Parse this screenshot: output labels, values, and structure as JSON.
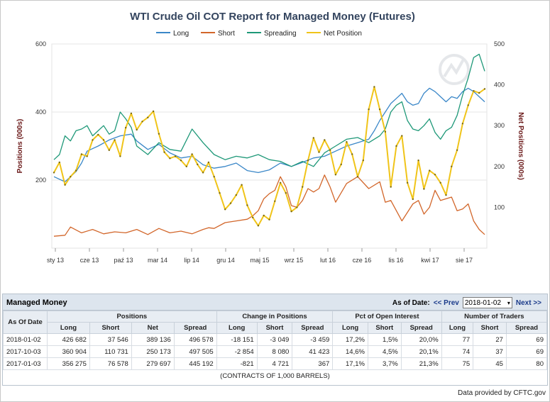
{
  "chart_data": {
    "type": "line",
    "title": "WTI Crude Oil COT Report for Managed Money (Futures)",
    "ylabel_left": "Positions (000s)",
    "ylabel_right": "Net Positions (000s)",
    "left_axis": {
      "ticks": [
        "200",
        "400",
        "600"
      ],
      "ylim": [
        0,
        600
      ]
    },
    "right_axis": {
      "ticks": [
        "100",
        "200",
        "300",
        "400",
        "500"
      ],
      "ylim": [
        0,
        500
      ]
    },
    "x_ticks": [
      "sty 13",
      "cze 13",
      "paź 13",
      "mar 14",
      "lip 14",
      "gru 14",
      "maj 15",
      "wrz 15",
      "lut 16",
      "cze 16",
      "lis 16",
      "kwi 17",
      "sie 17"
    ],
    "x_range": [
      "2013-01",
      "2018-01"
    ],
    "legend_position": "top-center",
    "series": [
      {
        "name": "Long",
        "axis": "left",
        "color": "#3a87c8",
        "points": [
          [
            0,
            210
          ],
          [
            2,
            195
          ],
          [
            4,
            225
          ],
          [
            5,
            250
          ],
          [
            6,
            285
          ],
          [
            8,
            300
          ],
          [
            10,
            318
          ],
          [
            12,
            330
          ],
          [
            14,
            335
          ],
          [
            15,
            315
          ],
          [
            17,
            290
          ],
          [
            19,
            305
          ],
          [
            21,
            280
          ],
          [
            23,
            265
          ],
          [
            25,
            270
          ],
          [
            27,
            245
          ],
          [
            29,
            235
          ],
          [
            31,
            240
          ],
          [
            33,
            250
          ],
          [
            35,
            228
          ],
          [
            37,
            222
          ],
          [
            39,
            230
          ],
          [
            41,
            250
          ],
          [
            43,
            240
          ],
          [
            45,
            252
          ],
          [
            47,
            265
          ],
          [
            49,
            270
          ],
          [
            51,
            285
          ],
          [
            53,
            300
          ],
          [
            55,
            310
          ],
          [
            57,
            320
          ],
          [
            58,
            345
          ],
          [
            59,
            375
          ],
          [
            60,
            400
          ],
          [
            61,
            425
          ],
          [
            62,
            440
          ],
          [
            63,
            455
          ],
          [
            64,
            430
          ],
          [
            65,
            420
          ],
          [
            66,
            425
          ],
          [
            67,
            455
          ],
          [
            68,
            470
          ],
          [
            69,
            460
          ],
          [
            70,
            445
          ],
          [
            71,
            430
          ],
          [
            72,
            445
          ],
          [
            73,
            440
          ],
          [
            74,
            460
          ],
          [
            75,
            470
          ],
          [
            76,
            460
          ],
          [
            77,
            445
          ],
          [
            78,
            430
          ]
        ]
      },
      {
        "name": "Short",
        "axis": "left",
        "color": "#d2662a",
        "points": [
          [
            0,
            35
          ],
          [
            2,
            38
          ],
          [
            3,
            62
          ],
          [
            5,
            45
          ],
          [
            7,
            55
          ],
          [
            9,
            42
          ],
          [
            11,
            48
          ],
          [
            13,
            45
          ],
          [
            15,
            55
          ],
          [
            17,
            40
          ],
          [
            19,
            58
          ],
          [
            21,
            45
          ],
          [
            23,
            50
          ],
          [
            25,
            42
          ],
          [
            27,
            55
          ],
          [
            28,
            60
          ],
          [
            29,
            58
          ],
          [
            31,
            75
          ],
          [
            33,
            80
          ],
          [
            35,
            85
          ],
          [
            36,
            95
          ],
          [
            37,
            110
          ],
          [
            38,
            145
          ],
          [
            39,
            160
          ],
          [
            40,
            170
          ],
          [
            41,
            210
          ],
          [
            42,
            180
          ],
          [
            43,
            125
          ],
          [
            44,
            120
          ],
          [
            45,
            140
          ],
          [
            46,
            175
          ],
          [
            47,
            165
          ],
          [
            48,
            175
          ],
          [
            49,
            215
          ],
          [
            50,
            180
          ],
          [
            51,
            135
          ],
          [
            53,
            190
          ],
          [
            55,
            210
          ],
          [
            57,
            175
          ],
          [
            59,
            195
          ],
          [
            60,
            135
          ],
          [
            61,
            140
          ],
          [
            62,
            110
          ],
          [
            63,
            80
          ],
          [
            65,
            130
          ],
          [
            66,
            140
          ],
          [
            67,
            100
          ],
          [
            68,
            120
          ],
          [
            69,
            170
          ],
          [
            70,
            140
          ],
          [
            72,
            150
          ],
          [
            73,
            110
          ],
          [
            74,
            115
          ],
          [
            75,
            130
          ],
          [
            76,
            80
          ],
          [
            77,
            55
          ],
          [
            78,
            40
          ]
        ]
      },
      {
        "name": "Spreading",
        "axis": "left",
        "color": "#1e9878",
        "points": [
          [
            0,
            260
          ],
          [
            1,
            275
          ],
          [
            2,
            330
          ],
          [
            3,
            315
          ],
          [
            4,
            345
          ],
          [
            5,
            350
          ],
          [
            6,
            360
          ],
          [
            7,
            330
          ],
          [
            8,
            345
          ],
          [
            9,
            360
          ],
          [
            10,
            335
          ],
          [
            11,
            345
          ],
          [
            12,
            400
          ],
          [
            13,
            380
          ],
          [
            14,
            355
          ],
          [
            15,
            300
          ],
          [
            17,
            275
          ],
          [
            19,
            310
          ],
          [
            21,
            290
          ],
          [
            23,
            285
          ],
          [
            25,
            350
          ],
          [
            27,
            310
          ],
          [
            29,
            275
          ],
          [
            31,
            260
          ],
          [
            33,
            270
          ],
          [
            35,
            265
          ],
          [
            37,
            275
          ],
          [
            39,
            260
          ],
          [
            41,
            255
          ],
          [
            43,
            240
          ],
          [
            45,
            255
          ],
          [
            47,
            240
          ],
          [
            49,
            280
          ],
          [
            51,
            300
          ],
          [
            53,
            320
          ],
          [
            55,
            325
          ],
          [
            57,
            310
          ],
          [
            59,
            330
          ],
          [
            60,
            350
          ],
          [
            61,
            400
          ],
          [
            62,
            420
          ],
          [
            63,
            430
          ],
          [
            64,
            375
          ],
          [
            65,
            350
          ],
          [
            66,
            345
          ],
          [
            67,
            360
          ],
          [
            68,
            380
          ],
          [
            69,
            340
          ],
          [
            70,
            320
          ],
          [
            71,
            345
          ],
          [
            72,
            355
          ],
          [
            73,
            390
          ],
          [
            74,
            450
          ],
          [
            75,
            500
          ],
          [
            76,
            560
          ],
          [
            77,
            570
          ],
          [
            78,
            520
          ]
        ]
      },
      {
        "name": "Net Position",
        "axis": "right",
        "color": "#f0c419",
        "points": [
          [
            0,
            185
          ],
          [
            1,
            210
          ],
          [
            2,
            155
          ],
          [
            3,
            175
          ],
          [
            4,
            190
          ],
          [
            5,
            230
          ],
          [
            6,
            225
          ],
          [
            7,
            265
          ],
          [
            8,
            278
          ],
          [
            9,
            265
          ],
          [
            10,
            240
          ],
          [
            11,
            265
          ],
          [
            12,
            225
          ],
          [
            13,
            295
          ],
          [
            14,
            330
          ],
          [
            15,
            290
          ],
          [
            16,
            310
          ],
          [
            17,
            320
          ],
          [
            18,
            335
          ],
          [
            19,
            280
          ],
          [
            20,
            235
          ],
          [
            21,
            220
          ],
          [
            22,
            225
          ],
          [
            23,
            215
          ],
          [
            24,
            200
          ],
          [
            25,
            230
          ],
          [
            26,
            205
          ],
          [
            27,
            185
          ],
          [
            28,
            210
          ],
          [
            29,
            175
          ],
          [
            30,
            135
          ],
          [
            31,
            95
          ],
          [
            32,
            110
          ],
          [
            33,
            130
          ],
          [
            34,
            155
          ],
          [
            35,
            105
          ],
          [
            36,
            75
          ],
          [
            37,
            55
          ],
          [
            38,
            80
          ],
          [
            39,
            70
          ],
          [
            40,
            115
          ],
          [
            41,
            160
          ],
          [
            42,
            135
          ],
          [
            43,
            90
          ],
          [
            44,
            100
          ],
          [
            45,
            150
          ],
          [
            46,
            215
          ],
          [
            47,
            270
          ],
          [
            48,
            235
          ],
          [
            49,
            265
          ],
          [
            50,
            240
          ],
          [
            51,
            180
          ],
          [
            52,
            205
          ],
          [
            53,
            260
          ],
          [
            54,
            230
          ],
          [
            55,
            175
          ],
          [
            56,
            215
          ],
          [
            57,
            340
          ],
          [
            58,
            395
          ],
          [
            59,
            340
          ],
          [
            60,
            285
          ],
          [
            61,
            150
          ],
          [
            62,
            250
          ],
          [
            63,
            275
          ],
          [
            64,
            160
          ],
          [
            65,
            120
          ],
          [
            66,
            215
          ],
          [
            67,
            145
          ],
          [
            68,
            190
          ],
          [
            69,
            180
          ],
          [
            70,
            160
          ],
          [
            71,
            130
          ],
          [
            72,
            200
          ],
          [
            73,
            240
          ],
          [
            74,
            305
          ],
          [
            75,
            350
          ],
          [
            76,
            385
          ],
          [
            77,
            380
          ],
          [
            78,
            390
          ]
        ]
      }
    ]
  },
  "table": {
    "panel_title": "Managed Money",
    "as_of_label": "As of Date:",
    "prev_label": "<< Prev",
    "next_label": "Next >>",
    "selected_date": "2018-01-02",
    "groups": {
      "asof": "As Of Date",
      "positions": "Positions",
      "change": "Change in Positions",
      "pct": "Pct of Open Interest",
      "traders": "Number of Traders"
    },
    "subheaders": {
      "long": "Long",
      "short": "Short",
      "net": "Net",
      "spread": "Spread"
    },
    "rows": [
      {
        "date": "2018-01-02",
        "pos_long": "426 682",
        "pos_short": "37 546",
        "pos_net": "389 136",
        "pos_spread": "496 578",
        "chg_long": "-18 151",
        "chg_short": "-3 049",
        "chg_spread": "-3 459",
        "pct_long": "17,2%",
        "pct_short": "1,5%",
        "pct_spread": "20,0%",
        "tr_long": "77",
        "tr_short": "27",
        "tr_spread": "69"
      },
      {
        "date": "2017-10-03",
        "pos_long": "360 904",
        "pos_short": "110 731",
        "pos_net": "250 173",
        "pos_spread": "497 505",
        "chg_long": "-2 854",
        "chg_short": "8 080",
        "chg_spread": "41 423",
        "pct_long": "14,6%",
        "pct_short": "4,5%",
        "pct_spread": "20,1%",
        "tr_long": "74",
        "tr_short": "37",
        "tr_spread": "69"
      },
      {
        "date": "2017-01-03",
        "pos_long": "356 275",
        "pos_short": "76 578",
        "pos_net": "279 697",
        "pos_spread": "445 192",
        "chg_long": "-821",
        "chg_short": "4 721",
        "chg_spread": "367",
        "pct_long": "17,1%",
        "pct_short": "3,7%",
        "pct_spread": "21,3%",
        "tr_long": "75",
        "tr_short": "45",
        "tr_spread": "80"
      }
    ],
    "contracts_note": "(CONTRACTS OF 1,000 BARRELS)"
  },
  "footer": {
    "provider_text": "Data provided by CFTC.gov"
  },
  "colors": {
    "title": "#33445e",
    "axis_label": "#6b1a1a",
    "neg": "#d01010",
    "pos": "#128012"
  }
}
